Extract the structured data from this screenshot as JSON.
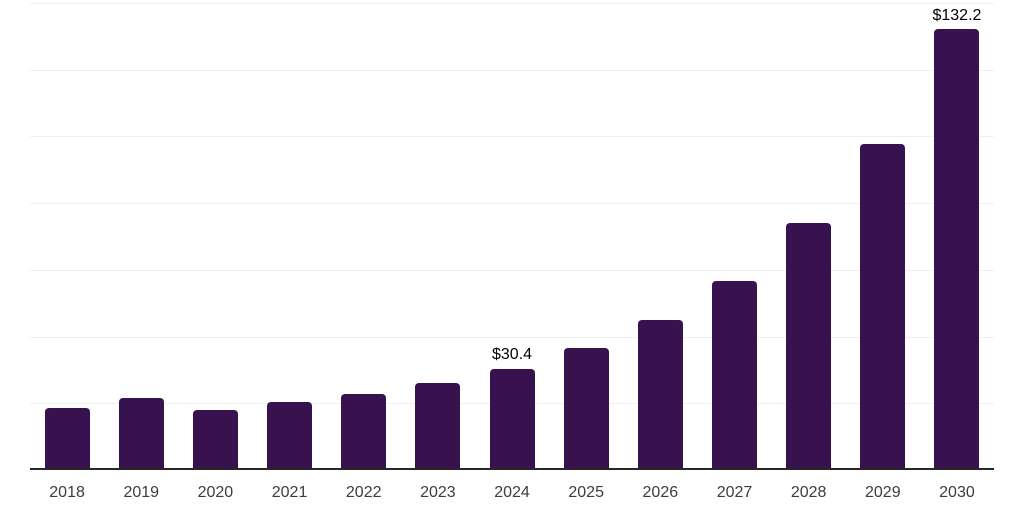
{
  "chart_data": {
    "type": "bar",
    "title": "",
    "xlabel": "",
    "ylabel": "",
    "categories": [
      "2018",
      "2019",
      "2020",
      "2021",
      "2022",
      "2023",
      "2024",
      "2025",
      "2026",
      "2027",
      "2028",
      "2029",
      "2030"
    ],
    "values": [
      18.6,
      21.6,
      18.0,
      20.4,
      22.7,
      26.1,
      30.4,
      36.5,
      45.0,
      56.8,
      74.0,
      97.8,
      132.2
    ],
    "bar_labels": [
      "",
      "",
      "",
      "",
      "",
      "",
      "$30.4",
      "",
      "",
      "",
      "",
      "",
      "$132.2"
    ],
    "ylim": [
      0,
      140
    ],
    "gridline_step": 20,
    "grid": true,
    "legend": false,
    "colors": {
      "bar": "#38124F",
      "axis_line": "#262626",
      "gridline": "#f0f0f0",
      "data_label": "#000000",
      "tick_label": "#3c3c3c",
      "background": "#ffffff"
    }
  }
}
